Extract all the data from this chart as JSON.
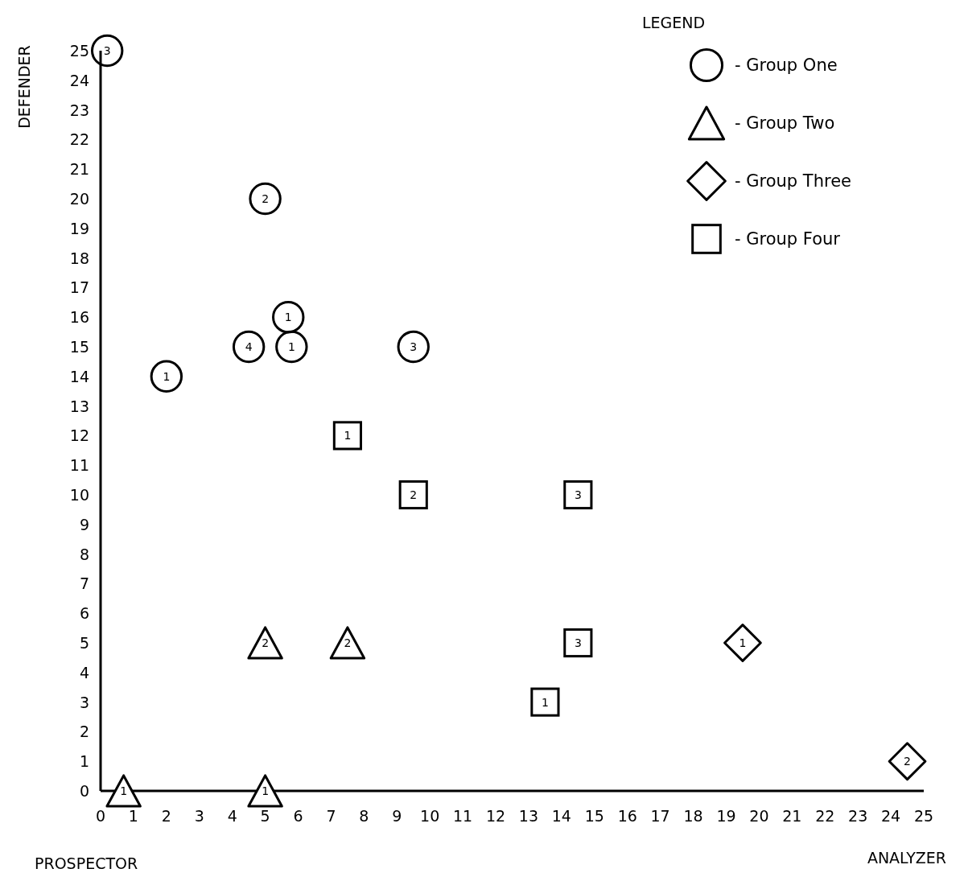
{
  "chart_data": {
    "type": "scatter",
    "xlabel": "ANALYZER",
    "ylabel": "DEFENDER",
    "legend_title": "LEGEND",
    "legend": "top right",
    "grid": false,
    "annotations": [
      "PROSPECTOR",
      {
        "text": "3",
        "x": 0.2,
        "y": 25
      },
      {
        "text": "2",
        "x": 5,
        "y": 20
      },
      {
        "text": "1",
        "x": 5.7,
        "y": 16
      },
      {
        "text": "4",
        "x": 4.5,
        "y": 15
      },
      {
        "text": "1",
        "x": 5.8,
        "y": 15
      },
      {
        "text": "3",
        "x": 9.5,
        "y": 15
      },
      {
        "text": "1",
        "x": 2,
        "y": 14
      },
      {
        "text": "2",
        "x": 5,
        "y": 5
      },
      {
        "text": "2",
        "x": 7.5,
        "y": 5
      },
      {
        "text": "1",
        "x": 0.7,
        "y": 0
      },
      {
        "text": "1",
        "x": 5,
        "y": 0
      },
      {
        "text": "1",
        "x": 19.5,
        "y": 5
      },
      {
        "text": "2",
        "x": 24.5,
        "y": 1
      },
      {
        "text": "1",
        "x": 7.5,
        "y": 12
      },
      {
        "text": "2",
        "x": 9.5,
        "y": 10
      },
      {
        "text": "3",
        "x": 14.5,
        "y": 10
      },
      {
        "text": "3",
        "x": 14.5,
        "y": 5
      },
      {
        "text": "1",
        "x": 13.5,
        "y": 3
      }
    ],
    "xlim": [
      0,
      25
    ],
    "ylim": [
      0,
      25
    ],
    "xticks": [
      0,
      1,
      2,
      3,
      4,
      5,
      6,
      7,
      8,
      9,
      10,
      11,
      12,
      13,
      14,
      15,
      16,
      17,
      18,
      19,
      20,
      21,
      22,
      23,
      24,
      25
    ],
    "yticks": [
      0,
      1,
      2,
      3,
      4,
      5,
      6,
      7,
      8,
      9,
      10,
      11,
      12,
      13,
      14,
      15,
      16,
      17,
      18,
      19,
      20,
      21,
      22,
      23,
      24,
      25
    ],
    "series": [
      {
        "name": "- Group One",
        "color": "#000000",
        "marker": "circle",
        "x": [
          0.2,
          5,
          5.7,
          4.5,
          5.8,
          9.5,
          2
        ],
        "values": [
          25,
          20,
          16,
          15,
          15,
          15,
          14
        ]
      },
      {
        "name": "- Group Two",
        "color": "#000000",
        "marker": "triangle",
        "x": [
          5,
          7.5,
          0.7,
          5
        ],
        "values": [
          5,
          5,
          0,
          0
        ]
      },
      {
        "name": "- Group Three",
        "color": "#000000",
        "marker": "diamond",
        "x": [
          19.5,
          24.5
        ],
        "values": [
          5,
          1
        ]
      },
      {
        "name": "- Group Four",
        "color": "#000000",
        "marker": "square",
        "x": [
          7.5,
          9.5,
          14.5,
          14.5,
          13.5
        ],
        "values": [
          12,
          10,
          10,
          5,
          3
        ]
      }
    ]
  }
}
